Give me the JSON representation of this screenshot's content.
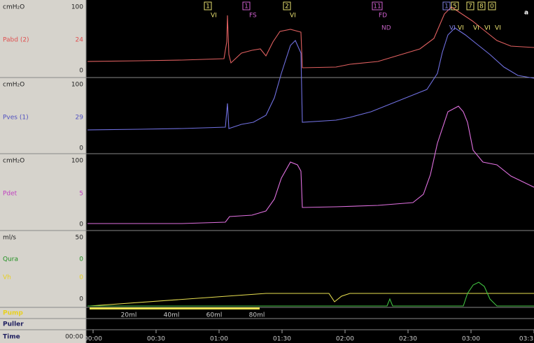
{
  "panel_tag": "a",
  "channels": [
    {
      "unit": "cmH₂O",
      "max": "100",
      "name": "Pabd (2)",
      "value": "24",
      "min": "0"
    },
    {
      "unit": "cmH₂O",
      "max": "100",
      "name": "Pves (1)",
      "value": "29",
      "min": "0"
    },
    {
      "unit": "cmH₂O",
      "max": "100",
      "name": "Pdet",
      "value": "5",
      "min": "0"
    }
  ],
  "flow_panel": {
    "unit": "ml/s",
    "max": "50",
    "min": "0",
    "traces": [
      {
        "name": "Qura",
        "value": "0"
      },
      {
        "name": "Vh",
        "value": "0"
      }
    ]
  },
  "rows": [
    "Pump",
    "Puller"
  ],
  "pump_marks": [
    "20ml",
    "40ml",
    "60ml",
    "80ml"
  ],
  "time": {
    "label": "Time",
    "value": "00:00",
    "ticks": [
      "00:00",
      "00:30",
      "01:00",
      "01:30",
      "02:00",
      "02:30",
      "03:00",
      "03:3"
    ]
  },
  "events": [
    {
      "label": "1",
      "code": "VI"
    },
    {
      "label": "1",
      "code": "FS"
    },
    {
      "label": "2",
      "code": "VI"
    },
    {
      "label": "11",
      "code": "FD"
    },
    {
      "label": "1",
      "code": "VI"
    },
    {
      "label": "5",
      "code": "VI"
    },
    {
      "label": "7",
      "code": "VI"
    },
    {
      "label": "8",
      "code": "VI"
    },
    {
      "label": "0",
      "code": "VI"
    }
  ],
  "event_note": "ND"
}
